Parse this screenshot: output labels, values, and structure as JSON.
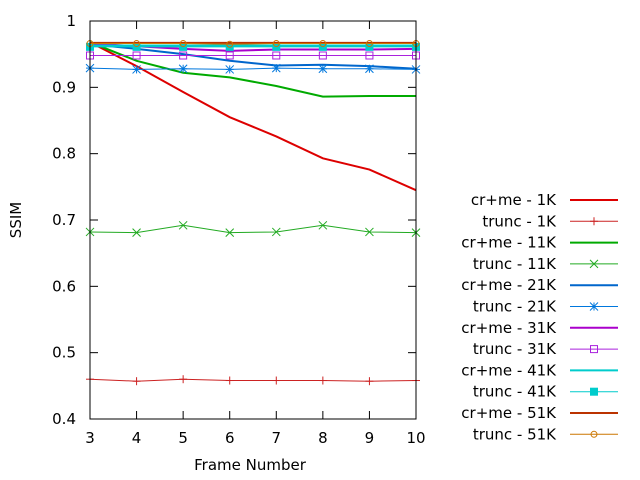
{
  "chart_data": {
    "type": "line",
    "title": "",
    "xlabel": "Frame Number",
    "ylabel": "SSIM",
    "x": [
      3,
      4,
      5,
      6,
      7,
      8,
      9,
      10
    ],
    "xlim": [
      3,
      10
    ],
    "ylim": [
      0.4,
      1.0
    ],
    "xticks": [
      "3",
      "4",
      "5",
      "6",
      "7",
      "8",
      "9",
      "10"
    ],
    "yticks": [
      "0.4",
      "0.5",
      "0.6",
      "0.7",
      "0.8",
      "0.9",
      "1"
    ],
    "yticks_values": [
      0.4,
      0.5,
      0.6,
      0.7,
      0.8,
      0.9,
      1.0
    ],
    "grid": false,
    "legend_position": "right",
    "series": [
      {
        "name": "cr+me - 1K",
        "color": "#dd0000",
        "marker": "none",
        "line_width": 2,
        "values": [
          0.968,
          0.932,
          0.893,
          0.855,
          0.826,
          0.793,
          0.776,
          0.745
        ]
      },
      {
        "name": "trunc - 1K",
        "color": "#cc2222",
        "marker": "plus",
        "line_width": 1,
        "values": [
          0.46,
          0.457,
          0.46,
          0.458,
          0.458,
          0.458,
          0.457,
          0.458
        ]
      },
      {
        "name": "cr+me - 11K",
        "color": "#00aa00",
        "marker": "none",
        "line_width": 2,
        "values": [
          0.968,
          0.94,
          0.922,
          0.915,
          0.902,
          0.886,
          0.887,
          0.887
        ]
      },
      {
        "name": "trunc - 11K",
        "color": "#22aa22",
        "marker": "cross",
        "line_width": 1,
        "values": [
          0.682,
          0.681,
          0.692,
          0.681,
          0.682,
          0.692,
          0.682,
          0.681
        ]
      },
      {
        "name": "cr+me - 21K",
        "color": "#0066cc",
        "marker": "none",
        "line_width": 2,
        "values": [
          0.965,
          0.958,
          0.95,
          0.94,
          0.933,
          0.934,
          0.932,
          0.928
        ]
      },
      {
        "name": "trunc - 21K",
        "color": "#0077dd",
        "marker": "star",
        "line_width": 1,
        "values": [
          0.929,
          0.927,
          0.928,
          0.927,
          0.929,
          0.928,
          0.928,
          0.927
        ]
      },
      {
        "name": "cr+me - 31K",
        "color": "#aa00cc",
        "marker": "none",
        "line_width": 2,
        "values": [
          0.966,
          0.962,
          0.958,
          0.955,
          0.957,
          0.957,
          0.957,
          0.958
        ]
      },
      {
        "name": "trunc - 31K",
        "color": "#aa22dd",
        "marker": "square",
        "line_width": 1,
        "values": [
          0.948,
          0.948,
          0.948,
          0.948,
          0.948,
          0.948,
          0.948,
          0.948
        ]
      },
      {
        "name": "cr+me - 41K",
        "color": "#00cccc",
        "marker": "none",
        "line_width": 2,
        "values": [
          0.963,
          0.963,
          0.963,
          0.963,
          0.963,
          0.963,
          0.963,
          0.963
        ]
      },
      {
        "name": "trunc - 41K",
        "color": "#00cccc",
        "marker": "filledsquare",
        "line_width": 1,
        "values": [
          0.961,
          0.961,
          0.961,
          0.961,
          0.961,
          0.961,
          0.961,
          0.961
        ]
      },
      {
        "name": "cr+me - 51K",
        "color": "#bb3300",
        "marker": "none",
        "line_width": 2,
        "values": [
          0.967,
          0.967,
          0.967,
          0.967,
          0.967,
          0.967,
          0.967,
          0.967
        ]
      },
      {
        "name": "trunc - 51K",
        "color": "#cc7700",
        "marker": "circle",
        "line_width": 1,
        "values": [
          0.966,
          0.966,
          0.966,
          0.965,
          0.966,
          0.966,
          0.966,
          0.966
        ]
      }
    ]
  }
}
